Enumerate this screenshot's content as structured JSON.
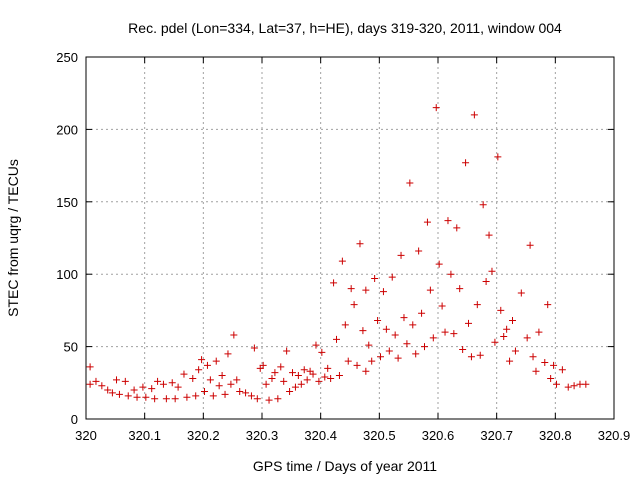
{
  "chart_data": {
    "type": "scatter",
    "title": "Rec. pdel (Lon=334, Lat=37, h=HE), days 319-320, 2011, window 004",
    "xlabel": "GPS time / Days of year 2011",
    "ylabel": "STEC from uqrg / TECUs",
    "xlim": [
      320,
      320.9
    ],
    "ylim": [
      0,
      250
    ],
    "xticks": [
      320,
      320.1,
      320.2,
      320.3,
      320.4,
      320.5,
      320.6,
      320.7,
      320.8,
      320.9
    ],
    "xtick_labels": [
      "320",
      "320.1",
      "320.2",
      "320.3",
      "320.4",
      "320.5",
      "320.6",
      "320.7",
      "320.8",
      "320.9"
    ],
    "yticks": [
      0,
      50,
      100,
      150,
      200,
      250
    ],
    "ytick_labels": [
      "0",
      "50",
      "100",
      "150",
      "200",
      "250"
    ],
    "grid": true,
    "marker": "+",
    "color": "#cc0000",
    "points": [
      [
        320.007,
        36
      ],
      [
        320.007,
        24
      ],
      [
        320.017,
        26
      ],
      [
        320.027,
        23
      ],
      [
        320.037,
        20
      ],
      [
        320.045,
        18
      ],
      [
        320.052,
        27
      ],
      [
        320.057,
        17
      ],
      [
        320.067,
        26
      ],
      [
        320.072,
        16
      ],
      [
        320.082,
        20
      ],
      [
        320.087,
        15
      ],
      [
        320.097,
        22
      ],
      [
        320.102,
        15
      ],
      [
        320.112,
        21
      ],
      [
        320.117,
        14
      ],
      [
        320.122,
        26
      ],
      [
        320.132,
        24
      ],
      [
        320.137,
        14
      ],
      [
        320.147,
        25
      ],
      [
        320.152,
        14
      ],
      [
        320.157,
        22
      ],
      [
        320.167,
        31
      ],
      [
        320.172,
        15
      ],
      [
        320.182,
        28
      ],
      [
        320.187,
        16
      ],
      [
        320.192,
        34
      ],
      [
        320.197,
        41
      ],
      [
        320.202,
        19
      ],
      [
        320.207,
        37
      ],
      [
        320.212,
        27
      ],
      [
        320.217,
        16
      ],
      [
        320.222,
        40
      ],
      [
        320.227,
        23
      ],
      [
        320.232,
        30
      ],
      [
        320.237,
        17
      ],
      [
        320.242,
        45
      ],
      [
        320.247,
        24
      ],
      [
        320.252,
        58
      ],
      [
        320.257,
        27
      ],
      [
        320.262,
        19
      ],
      [
        320.272,
        18
      ],
      [
        320.282,
        16
      ],
      [
        320.287,
        49
      ],
      [
        320.292,
        14
      ],
      [
        320.297,
        35
      ],
      [
        320.302,
        37
      ],
      [
        320.307,
        24
      ],
      [
        320.312,
        13
      ],
      [
        320.317,
        28
      ],
      [
        320.322,
        32
      ],
      [
        320.327,
        14
      ],
      [
        320.332,
        36
      ],
      [
        320.337,
        26
      ],
      [
        320.342,
        47
      ],
      [
        320.347,
        19
      ],
      [
        320.352,
        32
      ],
      [
        320.357,
        22
      ],
      [
        320.362,
        30
      ],
      [
        320.367,
        24
      ],
      [
        320.372,
        34
      ],
      [
        320.377,
        27
      ],
      [
        320.382,
        33
      ],
      [
        320.387,
        31
      ],
      [
        320.392,
        51
      ],
      [
        320.397,
        26
      ],
      [
        320.402,
        46
      ],
      [
        320.407,
        29
      ],
      [
        320.412,
        35
      ],
      [
        320.417,
        28
      ],
      [
        320.422,
        94
      ],
      [
        320.427,
        55
      ],
      [
        320.432,
        30
      ],
      [
        320.437,
        109
      ],
      [
        320.442,
        65
      ],
      [
        320.447,
        40
      ],
      [
        320.452,
        90
      ],
      [
        320.457,
        79
      ],
      [
        320.462,
        37
      ],
      [
        320.467,
        121
      ],
      [
        320.472,
        61
      ],
      [
        320.477,
        33
      ],
      [
        320.477,
        89
      ],
      [
        320.482,
        51
      ],
      [
        320.487,
        40
      ],
      [
        320.492,
        97
      ],
      [
        320.497,
        68
      ],
      [
        320.502,
        43
      ],
      [
        320.507,
        88
      ],
      [
        320.512,
        62
      ],
      [
        320.517,
        47
      ],
      [
        320.522,
        98
      ],
      [
        320.527,
        58
      ],
      [
        320.532,
        42
      ],
      [
        320.537,
        113
      ],
      [
        320.542,
        70
      ],
      [
        320.547,
        52
      ],
      [
        320.552,
        163
      ],
      [
        320.557,
        65
      ],
      [
        320.562,
        45
      ],
      [
        320.567,
        116
      ],
      [
        320.572,
        73
      ],
      [
        320.577,
        50
      ],
      [
        320.582,
        136
      ],
      [
        320.587,
        89
      ],
      [
        320.592,
        56
      ],
      [
        320.597,
        215
      ],
      [
        320.602,
        107
      ],
      [
        320.607,
        78
      ],
      [
        320.612,
        60
      ],
      [
        320.617,
        137
      ],
      [
        320.622,
        100
      ],
      [
        320.627,
        59
      ],
      [
        320.632,
        132
      ],
      [
        320.637,
        90
      ],
      [
        320.642,
        48
      ],
      [
        320.647,
        177
      ],
      [
        320.652,
        66
      ],
      [
        320.657,
        43
      ],
      [
        320.662,
        210
      ],
      [
        320.667,
        79
      ],
      [
        320.672,
        44
      ],
      [
        320.677,
        148
      ],
      [
        320.682,
        95
      ],
      [
        320.687,
        127
      ],
      [
        320.692,
        102
      ],
      [
        320.697,
        53
      ],
      [
        320.702,
        181
      ],
      [
        320.707,
        75
      ],
      [
        320.712,
        57
      ],
      [
        320.717,
        62
      ],
      [
        320.722,
        40
      ],
      [
        320.727,
        68
      ],
      [
        320.732,
        47
      ],
      [
        320.742,
        87
      ],
      [
        320.752,
        56
      ],
      [
        320.757,
        120
      ],
      [
        320.762,
        43
      ],
      [
        320.767,
        33
      ],
      [
        320.772,
        60
      ],
      [
        320.782,
        39
      ],
      [
        320.787,
        79
      ],
      [
        320.792,
        28
      ],
      [
        320.797,
        37
      ],
      [
        320.802,
        24
      ],
      [
        320.812,
        34
      ],
      [
        320.822,
        22
      ],
      [
        320.832,
        23
      ],
      [
        320.842,
        24
      ],
      [
        320.852,
        24
      ]
    ]
  }
}
